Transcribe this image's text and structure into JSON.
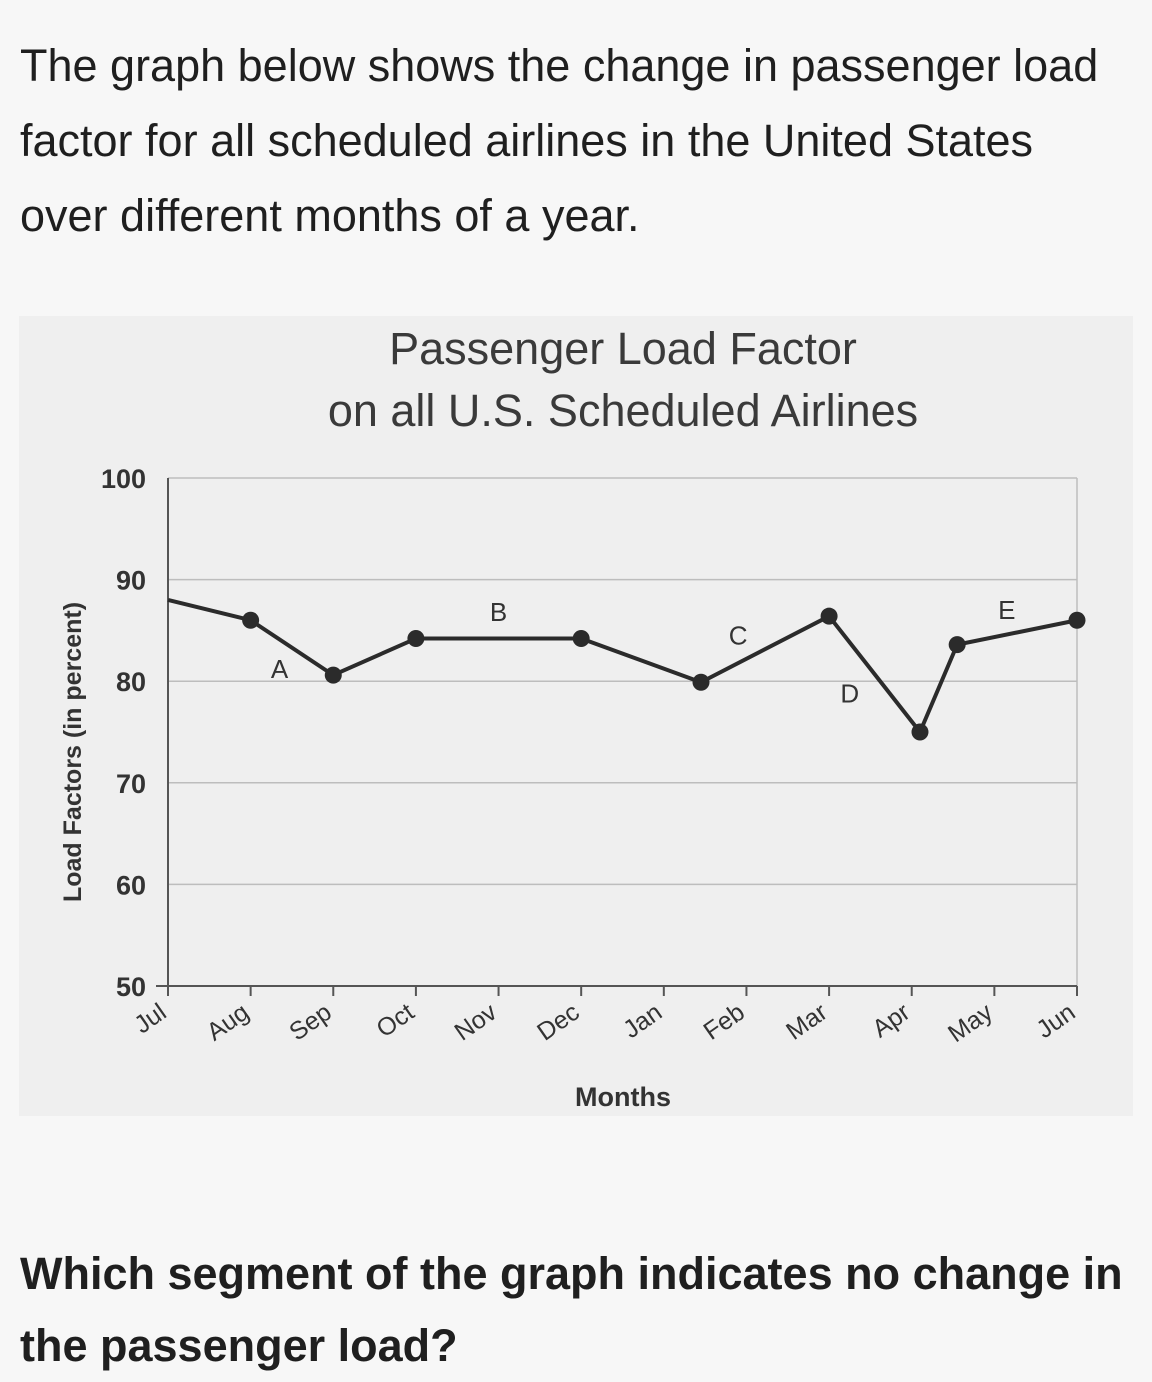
{
  "intro_text": "The graph below shows the change in passenger load factor for all scheduled airlines in the United States over different months of a year.",
  "question_text": "Which segment of the graph indicates no change in the passenger load?",
  "chart_data": {
    "type": "line",
    "title_lines": [
      "Passenger Load Factor",
      "on all U.S. Scheduled Airlines"
    ],
    "xlabel": "Months",
    "ylabel": "Load Factors (in percent)",
    "categories": [
      "Jul",
      "Aug",
      "Sep",
      "Oct",
      "Nov",
      "Dec",
      "Jan",
      "Feb",
      "Mar",
      "Apr",
      "May",
      "Jun"
    ],
    "ylim": [
      50,
      100
    ],
    "yticks": [
      50,
      60,
      70,
      80,
      90,
      100
    ],
    "grid": true,
    "line_color": "#2b2b2b",
    "series": [
      {
        "points": [
          {
            "x": "Jul",
            "y": 88,
            "marker": false
          },
          {
            "x": "Aug",
            "y": 86,
            "marker": true
          },
          {
            "x": "Sep",
            "y": 80.6,
            "marker": true
          },
          {
            "x": "Oct",
            "y": 84.2,
            "marker": true
          },
          {
            "x": "Dec",
            "y": 84.2,
            "marker": true
          },
          {
            "x": "Jan",
            "y": 79.9,
            "offset": 0.45,
            "marker": true
          },
          {
            "x": "Mar",
            "y": 86.4,
            "marker": true
          },
          {
            "x": "Apr",
            "y": 75,
            "offset": 0.1,
            "marker": true
          },
          {
            "x": "May",
            "y": 83.6,
            "offset": -0.45,
            "marker": true
          },
          {
            "x": "Jun",
            "y": 86,
            "marker": true
          }
        ]
      }
    ],
    "segment_labels": [
      {
        "text": "A",
        "x": "Aug",
        "offset": 0.35,
        "y": 81.2
      },
      {
        "text": "B",
        "x": "Nov",
        "offset": 0,
        "y": 86.8
      },
      {
        "text": "C",
        "x": "Feb",
        "offset": -0.1,
        "y": 84.5
      },
      {
        "text": "D",
        "x": "Mar",
        "offset": 0.25,
        "y": 78.8
      },
      {
        "text": "E",
        "x": "May",
        "offset": 0.15,
        "y": 87.0
      }
    ]
  }
}
